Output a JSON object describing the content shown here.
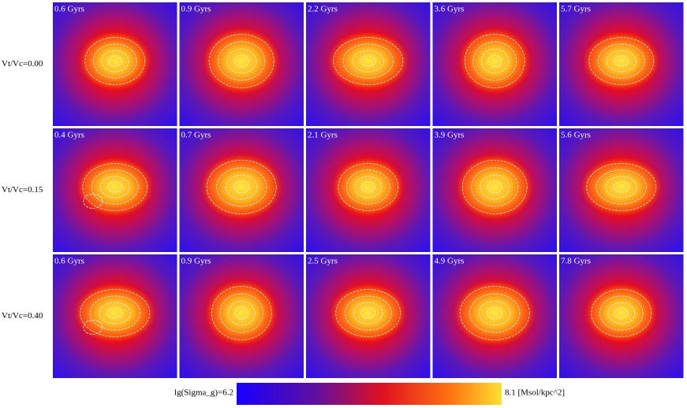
{
  "rows": [
    {
      "label": "Vt/Vc=0.00",
      "panels": [
        "0.6 Gyrs",
        "0.9 Gyrs",
        "2.2 Gyrs",
        "3.6 Gyrs",
        "5.7 Gyrs"
      ]
    },
    {
      "label": "Vt/Vc=0.15",
      "panels": [
        "0.4 Gyrs",
        "0.7 Gyrs",
        "2.1 Gyrs",
        "3.9 Gyrs",
        "5.6 Gyrs"
      ]
    },
    {
      "label": "Vt/Vc=0.40",
      "panels": [
        "0.6 Gyrs",
        "0.9 Gyrs",
        "2.5 Gyrs",
        "4.9 Gyrs",
        "7.8 Gyrs"
      ]
    }
  ],
  "colorbar": {
    "left_label": "lg(Sigma_g)=6.2",
    "right_label": "8.1 [Msol/kpc^2]"
  }
}
